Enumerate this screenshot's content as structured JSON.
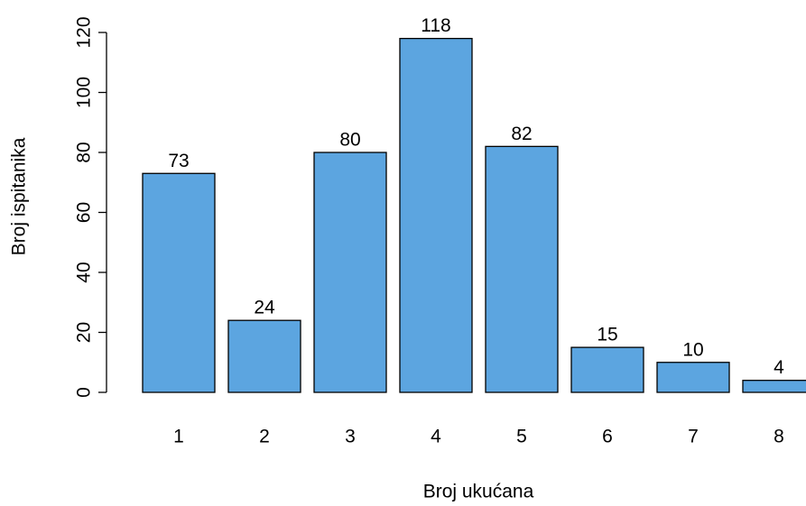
{
  "chart_data": {
    "type": "bar",
    "x_label": "Broj ukućana",
    "y_label": "Broj ispitanika",
    "categories": [
      "1",
      "2",
      "3",
      "4",
      "5",
      "6",
      "7",
      "8"
    ],
    "values": [
      73,
      24,
      80,
      118,
      82,
      15,
      10,
      4
    ],
    "color": "#5ca5e0",
    "ylim": [
      0,
      120
    ],
    "yticks": [
      0,
      20,
      40,
      60,
      80,
      100,
      120
    ],
    "grid": false
  }
}
